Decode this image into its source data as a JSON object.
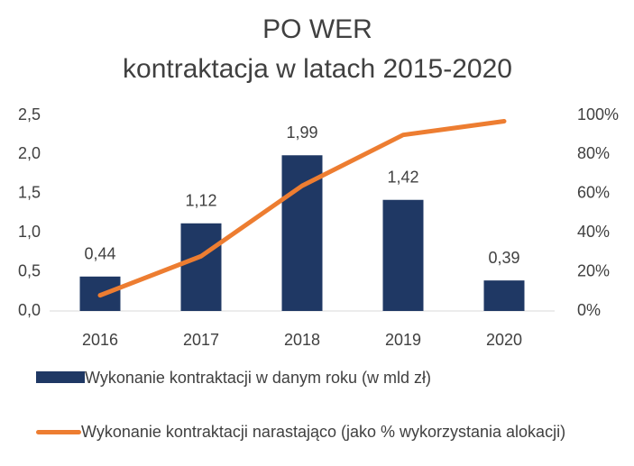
{
  "chart_data": {
    "type": "bar_line",
    "title": "PO WER",
    "subtitle": "kontraktacja w latach 2015-2020",
    "categories": [
      "2016",
      "2017",
      "2018",
      "2019",
      "2020"
    ],
    "series": [
      {
        "name": "Wykonanie kontraktacji w danym roku (w mld zł)",
        "type": "bar",
        "color": "#1f3864",
        "values": [
          0.44,
          1.12,
          1.99,
          1.42,
          0.39
        ],
        "value_labels": [
          "0,44",
          "1,12",
          "1,99",
          "1,42",
          "0,39"
        ]
      },
      {
        "name": "Wykonanie kontraktacji narastająco (jako % wykorzystania alokacji)",
        "type": "line",
        "color": "#ed7d31",
        "axis": "y2",
        "values": [
          8,
          28,
          64,
          90,
          97
        ]
      }
    ],
    "ylim": [
      0,
      2.5
    ],
    "yticks": [
      {
        "value": 0,
        "label": "0,0"
      },
      {
        "value": 0.5,
        "label": "0,5"
      },
      {
        "value": 1,
        "label": "1,0"
      },
      {
        "value": 1.5,
        "label": "1,5"
      },
      {
        "value": 2,
        "label": "2,0"
      },
      {
        "value": 2.5,
        "label": "2,5"
      }
    ],
    "y2lim": [
      0,
      100
    ],
    "y2ticks": [
      {
        "value": 0,
        "label": "0%"
      },
      {
        "value": 20,
        "label": "20%"
      },
      {
        "value": 40,
        "label": "40%"
      },
      {
        "value": 60,
        "label": "60%"
      },
      {
        "value": 80,
        "label": "80%"
      },
      {
        "value": 100,
        "label": "100%"
      }
    ],
    "grid": false,
    "legend": "bottom"
  }
}
